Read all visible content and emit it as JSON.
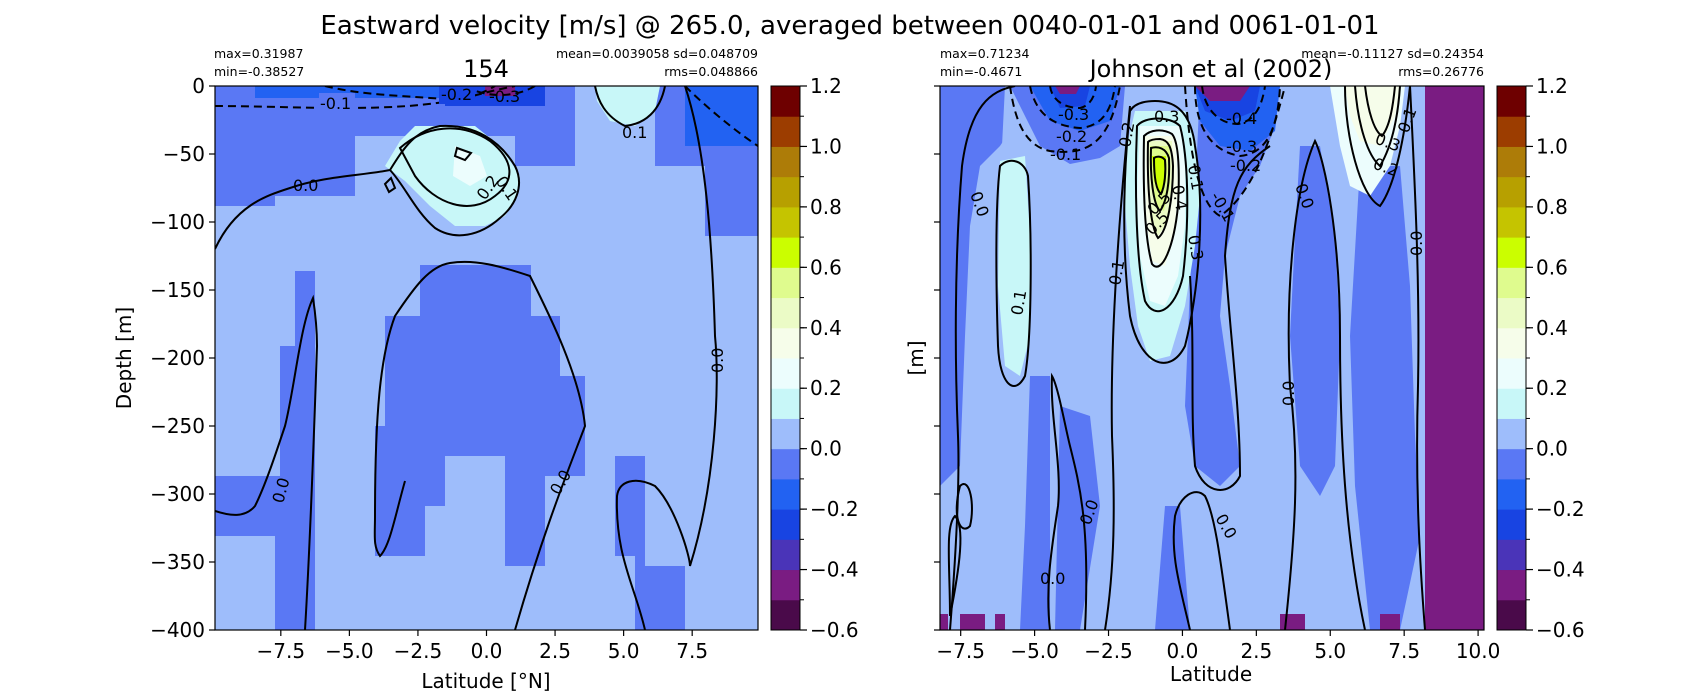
{
  "figure_title": "Eastward velocity [m/s] @ 265.0, averaged between 0040-01-01 and 0061-01-01",
  "colorbar": {
    "levels": [
      -0.6,
      -0.5,
      -0.4,
      -0.3,
      -0.2,
      -0.1,
      0.0,
      0.1,
      0.2,
      0.3,
      0.4,
      0.5,
      0.6,
      0.7,
      0.8,
      0.9,
      1.0,
      1.1,
      1.2
    ],
    "colors": [
      "#4a0a4a",
      "#7a1c82",
      "#4a34b8",
      "#1844e2",
      "#2262f2",
      "#5a78f4",
      "#9ebdfb",
      "#c8f7f8",
      "#ecfdfd",
      "#f6fdea",
      "#ebfbc6",
      "#dffb8e",
      "#cbfe00",
      "#c5c400",
      "#b7a000",
      "#ad7c08",
      "#9c3d00",
      "#6e0000"
    ],
    "tick_labels": [
      "1.2",
      "1.0",
      "0.8",
      "0.6",
      "0.4",
      "0.2",
      "0.0",
      "−0.2",
      "−0.4",
      "−0.6"
    ]
  },
  "chart_data": [
    {
      "type": "heatmap",
      "title": "154",
      "xlabel": "Latitude [°N]",
      "ylabel": "Depth [m]",
      "xlim": [
        -9.9,
        9.9
      ],
      "ylim": [
        -400,
        0
      ],
      "xticks": [
        -7.5,
        -5.0,
        -2.5,
        0.0,
        2.5,
        5.0,
        7.5
      ],
      "xtick_labels": [
        "−7.5",
        "−5.0",
        "−2.5",
        "0.0",
        "2.5",
        "5.0",
        "7.5"
      ],
      "ytick_labels": [
        "0",
        "−50",
        "−100",
        "−150",
        "−200",
        "−250",
        "−300",
        "−350",
        "−400"
      ],
      "stats": {
        "max": "max=0.31987",
        "min": "min=-0.38527",
        "mean_sd": "mean=0.0039058 sd=0.048709",
        "rms": "rms=0.048866"
      },
      "contour_labels": [
        "-0.1",
        "-0.2",
        "-0.3",
        "0.1",
        "0.1",
        "0.2",
        "0.0",
        "0.0",
        "0.0",
        "0.0"
      ]
    },
    {
      "type": "heatmap",
      "title": "Johnson et al (2002)",
      "xlabel": "Latitude",
      "ylabel": "[m]",
      "xlim": [
        -8.2,
        10.2
      ],
      "ylim": [
        -400,
        0
      ],
      "xticks": [
        -7.5,
        -5.0,
        -2.5,
        0.0,
        2.5,
        5.0,
        7.5,
        10.0
      ],
      "xtick_labels": [
        "−7.5",
        "−5.0",
        "−2.5",
        "0.0",
        "2.5",
        "5.0",
        "7.5",
        "10.0"
      ],
      "stats": {
        "max": "max=0.71234",
        "min": "min=-0.4671",
        "mean_sd": "mean=-0.11127 sd=0.24354",
        "rms": "rms=0.26776"
      },
      "contour_labels": [
        "-0.3",
        "-0.2",
        "-0.1",
        "-0.4",
        "-0.3",
        "-0.2",
        "-0.1",
        "0.3",
        "0.2",
        "0.1",
        "0.5",
        "0.5",
        "0.4",
        "0.3",
        "0.1",
        "0.0",
        "0.0",
        "0.0",
        "0.0",
        "0.0",
        "0.0",
        "0.0",
        "0.1",
        "0.2",
        "0.3",
        "0.1"
      ]
    }
  ]
}
